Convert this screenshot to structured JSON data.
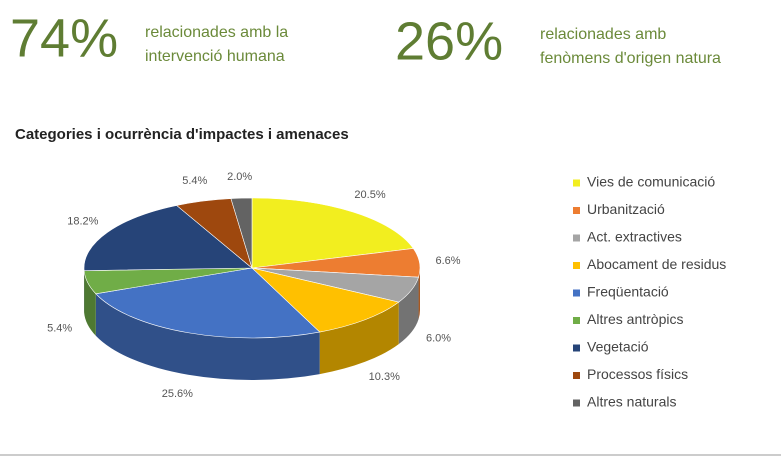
{
  "header": {
    "stats": [
      {
        "value": "74%",
        "lines": [
          "relacionades amb la",
          "intervenció humana"
        ]
      },
      {
        "value": "26%",
        "lines": [
          "relacionades amb",
          "fenòmens d'origen natura"
        ]
      }
    ]
  },
  "chart_data": {
    "type": "pie3d",
    "title": "Categories i ocurrència d'impactes i amenaces",
    "categories": [
      "Vies de comunicació",
      "Urbanització",
      "Act. extractives",
      "Abocament de residus",
      "Freqüentació",
      "Altres antròpics",
      "Vegetació",
      "Processos físics",
      "Altres naturals"
    ],
    "values": [
      20.5,
      6.6,
      6.0,
      10.3,
      25.6,
      5.4,
      18.2,
      5.4,
      2.0
    ],
    "value_labels": [
      "20.5%",
      "6.6%",
      "6.0%",
      "10.3%",
      "25.6%",
      "5.4%",
      "18.2%",
      "5.4%",
      "2.0%"
    ],
    "colors": [
      "#f2ee1f",
      "#ed7d31",
      "#a5a5a5",
      "#ffc000",
      "#4472c4",
      "#70ad47",
      "#264478",
      "#9e480e",
      "#636363"
    ],
    "legend": "right"
  }
}
